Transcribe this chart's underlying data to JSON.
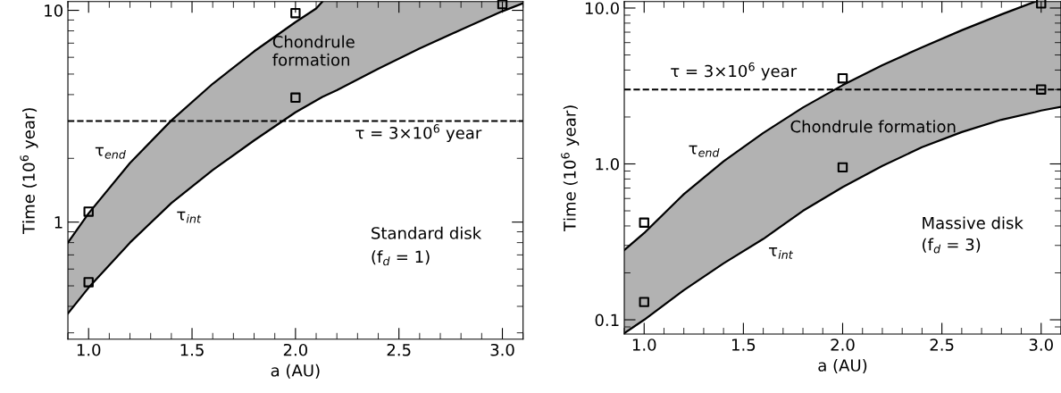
{
  "chart_data": [
    {
      "type": "line",
      "xlabel": "a (AU)",
      "ylabel": "Time (10$^{6}$ year)",
      "log": "y",
      "xlim": [
        0.9,
        3.1
      ],
      "xticks": [
        {
          "value": 1.0,
          "label": "1.0"
        },
        {
          "value": 1.5,
          "label": "1.5"
        },
        {
          "value": 2.0,
          "label": "2.0"
        },
        {
          "value": 2.5,
          "label": "2.5"
        },
        {
          "value": 3.0,
          "label": "3.0"
        }
      ],
      "ylim": [
        0.28,
        11
      ],
      "yticks": [
        1,
        10
      ],
      "series": [
        {
          "name": "τ$_{end}$",
          "color": "#000000",
          "x": [
            0.9,
            1.0,
            1.2,
            1.4,
            1.6,
            1.8,
            2.0,
            2.1,
            2.13
          ],
          "values": [
            0.8,
            1.1,
            1.9,
            3.02,
            4.5,
            6.4,
            8.8,
            10.2,
            11
          ]
        },
        {
          "name": "τ$_{int}$",
          "color": "#000000",
          "x": [
            0.9,
            1.0,
            1.2,
            1.4,
            1.6,
            1.8,
            2.0,
            2.1,
            2.13,
            2.2,
            2.4,
            2.6,
            2.8,
            3.0,
            3.1
          ],
          "values": [
            0.37,
            0.49,
            0.8,
            1.23,
            1.76,
            2.43,
            3.3,
            3.75,
            3.9,
            4.2,
            5.3,
            6.6,
            8.1,
            9.9,
            10.8
          ],
          "lower": [
            0.37,
            0.49,
            0.8,
            1.23,
            1.76,
            2.43,
            3.3,
            3.75,
            3.9,
            4.2,
            5.3,
            6.6,
            8.1,
            9.9,
            10.8
          ],
          "upper": [
            0.8,
            1.1,
            1.9,
            3.02,
            4.5,
            6.4,
            8.8,
            10.2,
            11,
            11,
            11,
            11,
            11,
            11,
            11
          ]
        },
        {
          "type": "scatter",
          "color": "#000000",
          "marker": "square",
          "x": [
            1.0,
            1.0,
            2.0,
            2.0,
            3.0
          ],
          "values": [
            1.12,
            0.52,
            9.7,
            3.87,
            10.7
          ]
        }
      ],
      "ref_lines": [
        {
          "axis": "y",
          "value": 3,
          "line_style": "dashed",
          "color": "#000000",
          "label": "τ = 3×10$^{6}$ year"
        }
      ],
      "annotations": [
        "Chondrule\nformation",
        "Standard disk",
        "(f$_{d}$ = 1)"
      ]
    },
    {
      "type": "line",
      "xlabel": "a (AU)",
      "ylabel": "Time (10$^{6}$ year)",
      "log": "y",
      "xlim": [
        0.9,
        3.1
      ],
      "xticks": [
        {
          "value": 1.0,
          "label": "1.0"
        },
        {
          "value": 1.5,
          "label": "1.5"
        },
        {
          "value": 2.0,
          "label": "2.0"
        },
        {
          "value": 2.5,
          "label": "2.5"
        },
        {
          "value": 3.0,
          "label": "3.0"
        }
      ],
      "ylim": [
        0.081,
        11
      ],
      "yticks": [
        {
          "value": 0.1,
          "label": "0.1"
        },
        {
          "value": 1,
          "label": "1.0"
        },
        {
          "value": 10,
          "label": "10.0"
        }
      ],
      "series": [
        {
          "name": "τ$_{end}$",
          "color": "#000000",
          "x": [
            0.9,
            1.0,
            1.2,
            1.4,
            1.6,
            1.8,
            2.0,
            2.2,
            2.4,
            2.6,
            2.8,
            2.97
          ],
          "values": [
            0.28,
            0.36,
            0.64,
            1.04,
            1.58,
            2.3,
            3.2,
            4.3,
            5.6,
            7.2,
            9.1,
            11
          ]
        },
        {
          "name": "τ$_{int}$",
          "color": "#000000",
          "x": [
            0.9,
            1.0,
            1.2,
            1.4,
            1.6,
            1.8,
            2.0,
            2.2,
            2.4,
            2.6,
            2.8,
            2.97,
            3.0,
            3.1
          ],
          "values": [
            0.082,
            0.1,
            0.155,
            0.23,
            0.33,
            0.5,
            0.71,
            0.97,
            1.28,
            1.6,
            1.92,
            2.15,
            2.2,
            2.32
          ],
          "lower": [
            0.082,
            0.1,
            0.155,
            0.23,
            0.33,
            0.5,
            0.71,
            0.97,
            1.28,
            1.6,
            1.92,
            2.15,
            2.2,
            2.32
          ],
          "upper": [
            0.28,
            0.36,
            0.64,
            1.04,
            1.58,
            2.3,
            3.2,
            4.3,
            5.6,
            7.2,
            9.1,
            11,
            11,
            11
          ]
        },
        {
          "type": "scatter",
          "color": "#000000",
          "marker": "square",
          "x": [
            1.0,
            1.0,
            2.0,
            2.0,
            3.0,
            3.0
          ],
          "values": [
            0.42,
            0.13,
            3.54,
            0.95,
            3.0,
            10.7
          ]
        }
      ],
      "ref_lines": [
        {
          "axis": "y",
          "value": 3,
          "line_style": "dashed",
          "color": "#000000",
          "label": "τ = 3×10$^{6}$ year"
        }
      ],
      "annotations": [
        "Chondrule formation",
        "Massive disk",
        "(f$_{d}$ = 3)"
      ]
    }
  ]
}
